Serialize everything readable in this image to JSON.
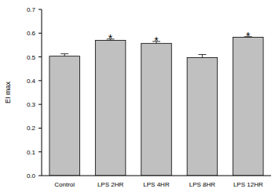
{
  "chart_data": {
    "type": "bar",
    "y_label": "EI max",
    "categories": [
      "Control",
      "LPS 2HR",
      "LPS 4HR",
      "LPS 8HR",
      "LPS 12HR"
    ],
    "values": [
      0.503,
      0.57,
      0.557,
      0.497,
      0.583
    ],
    "errors": [
      0.01,
      0.005,
      0.008,
      0.013,
      0.002
    ],
    "significance": [
      null,
      "*",
      "*",
      null,
      "*"
    ],
    "color": "#c0c0c0",
    "ylim": [
      0,
      0.7
    ],
    "yticks": [
      {
        "value": 0,
        "label": "0.0"
      },
      0.1,
      0.2,
      0.3,
      0.4,
      0.5,
      0.6,
      0.7
    ],
    "grid": false
  }
}
